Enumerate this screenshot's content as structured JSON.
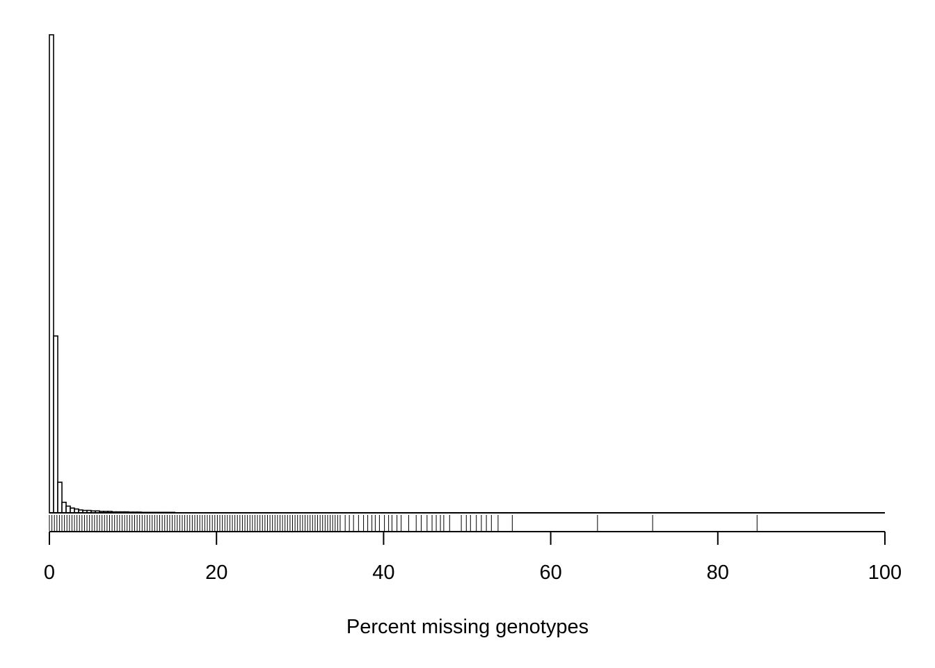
{
  "chart_data": {
    "type": "bar",
    "xlabel": "Percent missing genotypes",
    "ylabel": "",
    "xlim": [
      0,
      100
    ],
    "x_ticks": [
      "0",
      "20",
      "40",
      "60",
      "80",
      "100"
    ],
    "y_axis_shown": false,
    "bin_width": 0.5,
    "bins": [
      {
        "x0": 0.0,
        "x1": 0.5,
        "value": 1000
      },
      {
        "x0": 0.5,
        "x1": 1.0,
        "value": 370
      },
      {
        "x0": 1.0,
        "x1": 1.5,
        "value": 64
      },
      {
        "x0": 1.5,
        "x1": 2.0,
        "value": 22
      },
      {
        "x0": 2.0,
        "x1": 2.5,
        "value": 14
      },
      {
        "x0": 2.5,
        "x1": 3.0,
        "value": 10
      },
      {
        "x0": 3.0,
        "x1": 3.5,
        "value": 8
      },
      {
        "x0": 3.5,
        "x1": 4.0,
        "value": 6
      },
      {
        "x0": 4.0,
        "x1": 4.5,
        "value": 5
      },
      {
        "x0": 4.5,
        "x1": 5.0,
        "value": 5
      },
      {
        "x0": 5.0,
        "x1": 5.5,
        "value": 4
      },
      {
        "x0": 5.5,
        "x1": 6.0,
        "value": 4
      },
      {
        "x0": 6.0,
        "x1": 6.5,
        "value": 3
      },
      {
        "x0": 6.5,
        "x1": 7.0,
        "value": 3
      },
      {
        "x0": 7.0,
        "x1": 7.5,
        "value": 3
      },
      {
        "x0": 7.5,
        "x1": 8.0,
        "value": 2
      },
      {
        "x0": 8.0,
        "x1": 8.5,
        "value": 2
      },
      {
        "x0": 8.5,
        "x1": 9.0,
        "value": 2
      },
      {
        "x0": 9.0,
        "x1": 9.5,
        "value": 2
      },
      {
        "x0": 9.5,
        "x1": 10.0,
        "value": 1.5
      },
      {
        "x0": 10.0,
        "x1": 10.5,
        "value": 1.5
      },
      {
        "x0": 10.5,
        "x1": 11.0,
        "value": 1.5
      },
      {
        "x0": 11.0,
        "x1": 11.5,
        "value": 1
      },
      {
        "x0": 11.5,
        "x1": 12.0,
        "value": 1
      },
      {
        "x0": 12.0,
        "x1": 12.5,
        "value": 1
      },
      {
        "x0": 12.5,
        "x1": 13.0,
        "value": 1
      },
      {
        "x0": 13.0,
        "x1": 13.5,
        "value": 1
      },
      {
        "x0": 13.5,
        "x1": 14.0,
        "value": 1
      },
      {
        "x0": 14.0,
        "x1": 14.5,
        "value": 1
      },
      {
        "x0": 14.5,
        "x1": 15.0,
        "value": 1
      }
    ],
    "baseline_extends_to": 100,
    "rug": {
      "dense_ranges": [
        {
          "from": 0.0,
          "to": 35.0,
          "step": 0.3
        }
      ],
      "sparse_values": [
        35.4,
        35.9,
        36.4,
        37.0,
        37.6,
        38.1,
        38.6,
        39.0,
        39.5,
        40.1,
        40.6,
        41.0,
        41.6,
        42.1,
        43.0,
        43.9,
        44.5,
        45.2,
        45.8,
        46.3,
        46.8,
        47.2,
        47.9,
        49.3,
        49.9,
        50.4,
        51.1,
        51.7,
        52.3,
        52.9,
        53.7,
        55.4,
        65.6,
        72.2,
        84.7
      ]
    }
  }
}
